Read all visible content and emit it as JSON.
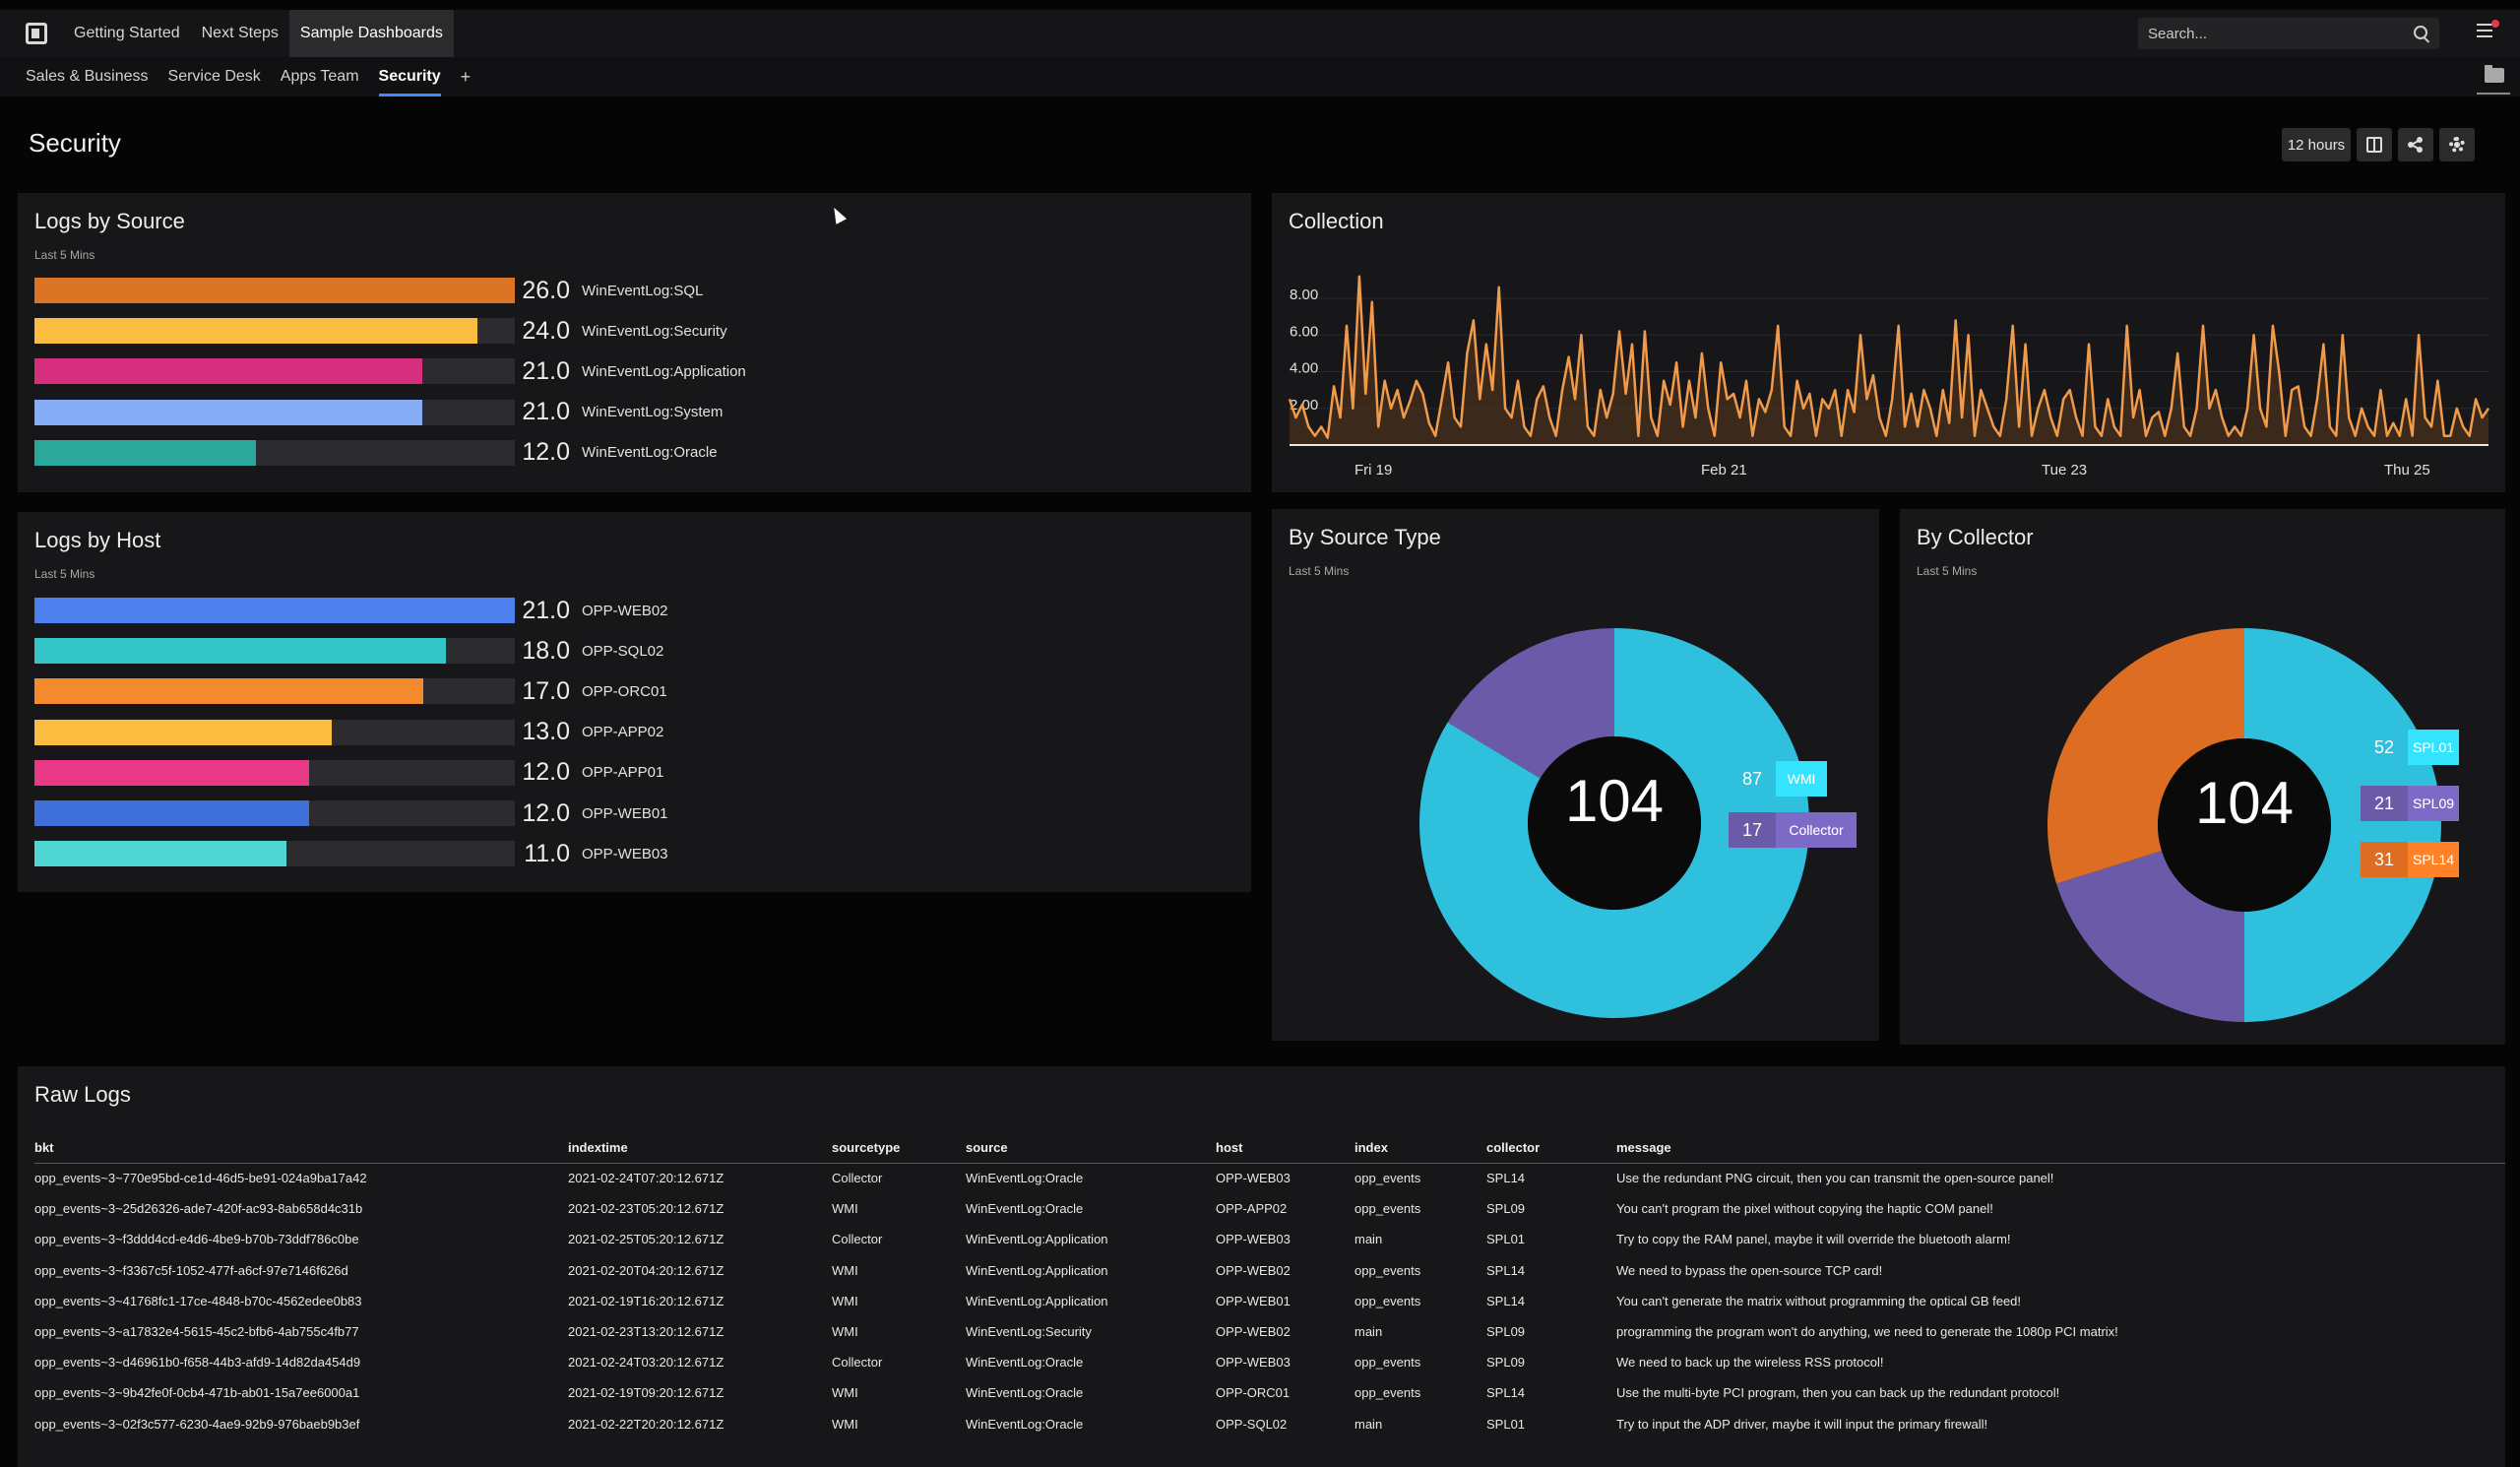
{
  "topbar": {
    "tabs": [
      "Getting Started",
      "Next Steps",
      "Sample Dashboards"
    ],
    "active_tab": "Sample Dashboards",
    "search_placeholder": "Search..."
  },
  "subtabs": [
    "Sales & Business",
    "Service Desk",
    "Apps Team",
    "Security"
  ],
  "active_subtab": "Security",
  "page": {
    "title": "Security",
    "time_range": "12 hours"
  },
  "logs_by_source": {
    "title": "Logs by Source",
    "subtitle": "Last 5 Mins",
    "max": 26,
    "items": [
      {
        "label": "WinEventLog:SQL",
        "value": "26.0",
        "num": 26,
        "color": "#dc7425"
      },
      {
        "label": "WinEventLog:Security",
        "value": "24.0",
        "num": 24,
        "color": "#fbbd3f"
      },
      {
        "label": "WinEventLog:Application",
        "value": "21.0",
        "num": 21,
        "color": "#d62d7c"
      },
      {
        "label": "WinEventLog:System",
        "value": "21.0",
        "num": 21,
        "color": "#86aef8"
      },
      {
        "label": "WinEventLog:Oracle",
        "value": "12.0",
        "num": 12,
        "color": "#2aa99b"
      }
    ]
  },
  "logs_by_host": {
    "title": "Logs by Host",
    "subtitle": "Last 5 Mins",
    "max": 21,
    "items": [
      {
        "label": "OPP-WEB02",
        "value": "21.0",
        "num": 21,
        "color": "#4f80f0"
      },
      {
        "label": "OPP-SQL02",
        "value": "18.0",
        "num": 18,
        "color": "#34c6c6"
      },
      {
        "label": "OPP-ORC01",
        "value": "17.0",
        "num": 17,
        "color": "#f38b2e"
      },
      {
        "label": "OPP-APP02",
        "value": "13.0",
        "num": 13,
        "color": "#fbbd3f"
      },
      {
        "label": "OPP-APP01",
        "value": "12.0",
        "num": 12,
        "color": "#e93886"
      },
      {
        "label": "OPP-WEB01",
        "value": "12.0",
        "num": 12,
        "color": "#3f6fd8"
      },
      {
        "label": "OPP-WEB03",
        "value": "11.0",
        "num": 11,
        "color": "#4fd6d2"
      }
    ]
  },
  "collection": {
    "title": "Collection",
    "y_ticks": [
      "8.00",
      "6.00",
      "4.00",
      "2.00"
    ],
    "x_ticks": [
      "Fri 19",
      "Feb 21",
      "Tue 23",
      "Thu 25"
    ]
  },
  "by_source_type": {
    "title": "By Source Type",
    "subtitle": "Last 5 Mins",
    "total": "104",
    "slices": [
      {
        "name": "WMI",
        "value": "87",
        "num": 87,
        "color": "#2ec0dc"
      },
      {
        "name": "Collector",
        "value": "17",
        "num": 17,
        "color": "#6a5aa8"
      }
    ]
  },
  "by_collector": {
    "title": "By Collector",
    "subtitle": "Last 5 Mins",
    "total": "104",
    "slices": [
      {
        "name": "SPL01",
        "value": "52",
        "num": 52,
        "color": "#2ec0dc"
      },
      {
        "name": "SPL09",
        "value": "21",
        "num": 21,
        "color": "#6a5aa8"
      },
      {
        "name": "SPL14",
        "value": "31",
        "num": 31,
        "color": "#dd6d22"
      }
    ]
  },
  "chart_data": [
    {
      "type": "line",
      "title": "Collection",
      "x_ticks": [
        "Fri 19",
        "Feb 21",
        "Tue 23",
        "Thu 25"
      ],
      "ylim": [
        0,
        10
      ],
      "values": [
        2.5,
        1.5,
        2.2,
        1.0,
        0.5,
        1.0,
        0.4,
        3.2,
        1.5,
        6.5,
        2.0,
        9.2,
        2.8,
        7.8,
        1.0,
        3.5,
        2.0,
        3.0,
        1.5,
        2.4,
        3.5,
        2.8,
        1.2,
        0.5,
        2.5,
        4.5,
        1.5,
        1.0,
        5.0,
        6.8,
        2.5,
        5.5,
        3.0,
        8.6,
        2.0,
        1.5,
        3.5,
        1.0,
        0.5,
        2.5,
        3.2,
        1.5,
        0.5,
        3.0,
        4.8,
        2.5,
        6.0,
        1.0,
        0.5,
        3.0,
        1.5,
        2.8,
        6.2,
        2.8,
        5.5,
        0.5,
        6.2,
        1.5,
        0.5,
        3.5,
        2.2,
        4.5,
        1.0,
        3.5,
        1.5,
        5.0,
        2.0,
        0.5,
        4.5,
        2.5,
        2.8,
        1.5,
        3.5,
        0.5,
        2.5,
        1.8,
        3.0,
        6.5,
        1.0,
        0.5,
        3.5,
        2.0,
        2.8,
        0.5,
        2.5,
        2.0,
        3.0,
        0.5,
        3.0,
        1.8,
        6.0,
        2.5,
        3.8,
        1.5,
        0.5,
        2.5,
        6.5,
        1.0,
        2.8,
        1.0,
        3.0,
        2.0,
        0.5,
        3.0,
        1.2,
        6.8,
        1.5,
        6.0,
        0.5,
        3.0,
        2.0,
        1.0,
        0.5,
        2.5,
        6.5,
        1.0,
        5.5,
        0.5,
        2.0,
        3.0,
        1.5,
        0.5,
        2.5,
        3.0,
        1.5,
        0.5,
        5.5,
        1.0,
        0.5,
        2.5,
        1.0,
        0.5,
        6.5,
        1.5,
        3.0,
        0.5,
        1.5,
        1.8,
        0.5,
        2.0,
        5.0,
        1.0,
        0.5,
        2.0,
        6.5,
        2.0,
        3.0,
        1.5,
        0.5,
        1.0,
        0.5,
        2.0,
        6.0,
        2.0,
        1.0,
        6.5,
        4.0,
        0.5,
        3.0,
        3.2,
        1.0,
        0.5,
        2.5,
        5.5,
        1.0,
        0.5,
        6.0,
        1.5,
        0.5,
        2.0,
        1.0,
        0.5,
        3.0,
        0.5,
        1.2,
        0.5,
        2.5,
        0.5,
        6.0,
        1.5,
        1.0,
        3.5,
        0.5,
        0.5,
        2.0,
        1.0,
        0.5,
        2.5,
        1.5,
        2.0
      ]
    },
    {
      "type": "pie",
      "title": "By Source Type",
      "categories": [
        "WMI",
        "Collector"
      ],
      "values": [
        87,
        17
      ]
    },
    {
      "type": "pie",
      "title": "By Collector",
      "categories": [
        "SPL01",
        "SPL09",
        "SPL14"
      ],
      "values": [
        52,
        21,
        31
      ]
    }
  ],
  "raw_logs": {
    "title": "Raw Logs",
    "columns": [
      "bkt",
      "indextime",
      "sourcetype",
      "source",
      "host",
      "index",
      "collector",
      "message"
    ],
    "rows": [
      [
        "opp_events~3~770e95bd-ce1d-46d5-be91-024a9ba17a42",
        "2021-02-24T07:20:12.671Z",
        "Collector",
        "WinEventLog:Oracle",
        "OPP-WEB03",
        "opp_events",
        "SPL14",
        "Use the redundant PNG circuit, then you can transmit the open-source panel!"
      ],
      [
        "opp_events~3~25d26326-ade7-420f-ac93-8ab658d4c31b",
        "2021-02-23T05:20:12.671Z",
        "WMI",
        "WinEventLog:Oracle",
        "OPP-APP02",
        "opp_events",
        "SPL09",
        "You can't program the pixel without copying the haptic COM panel!"
      ],
      [
        "opp_events~3~f3ddd4cd-e4d6-4be9-b70b-73ddf786c0be",
        "2021-02-25T05:20:12.671Z",
        "Collector",
        "WinEventLog:Application",
        "OPP-WEB03",
        "main",
        "SPL01",
        "Try to copy the RAM panel, maybe it will override the bluetooth alarm!"
      ],
      [
        "opp_events~3~f3367c5f-1052-477f-a6cf-97e7146f626d",
        "2021-02-20T04:20:12.671Z",
        "WMI",
        "WinEventLog:Application",
        "OPP-WEB02",
        "opp_events",
        "SPL14",
        "We need to bypass the open-source TCP card!"
      ],
      [
        "opp_events~3~41768fc1-17ce-4848-b70c-4562edee0b83",
        "2021-02-19T16:20:12.671Z",
        "WMI",
        "WinEventLog:Application",
        "OPP-WEB01",
        "opp_events",
        "SPL14",
        "You can't generate the matrix without programming the optical GB feed!"
      ],
      [
        "opp_events~3~a17832e4-5615-45c2-bfb6-4ab755c4fb77",
        "2021-02-23T13:20:12.671Z",
        "WMI",
        "WinEventLog:Security",
        "OPP-WEB02",
        "main",
        "SPL09",
        "programming the program won't do anything, we need to generate the 1080p PCI matrix!"
      ],
      [
        "opp_events~3~d46961b0-f658-44b3-afd9-14d82da454d9",
        "2021-02-24T03:20:12.671Z",
        "Collector",
        "WinEventLog:Oracle",
        "OPP-WEB03",
        "opp_events",
        "SPL09",
        "We need to back up the wireless RSS protocol!"
      ],
      [
        "opp_events~3~9b42fe0f-0cb4-471b-ab01-15a7ee6000a1",
        "2021-02-19T09:20:12.671Z",
        "WMI",
        "WinEventLog:Oracle",
        "OPP-ORC01",
        "opp_events",
        "SPL14",
        "Use the multi-byte PCI program, then you can back up the redundant protocol!"
      ],
      [
        "opp_events~3~02f3c577-6230-4ae9-92b9-976baeb9b3ef",
        "2021-02-22T20:20:12.671Z",
        "WMI",
        "WinEventLog:Oracle",
        "OPP-SQL02",
        "main",
        "SPL01",
        "Try to input the ADP driver, maybe it will input the primary firewall!"
      ]
    ]
  }
}
